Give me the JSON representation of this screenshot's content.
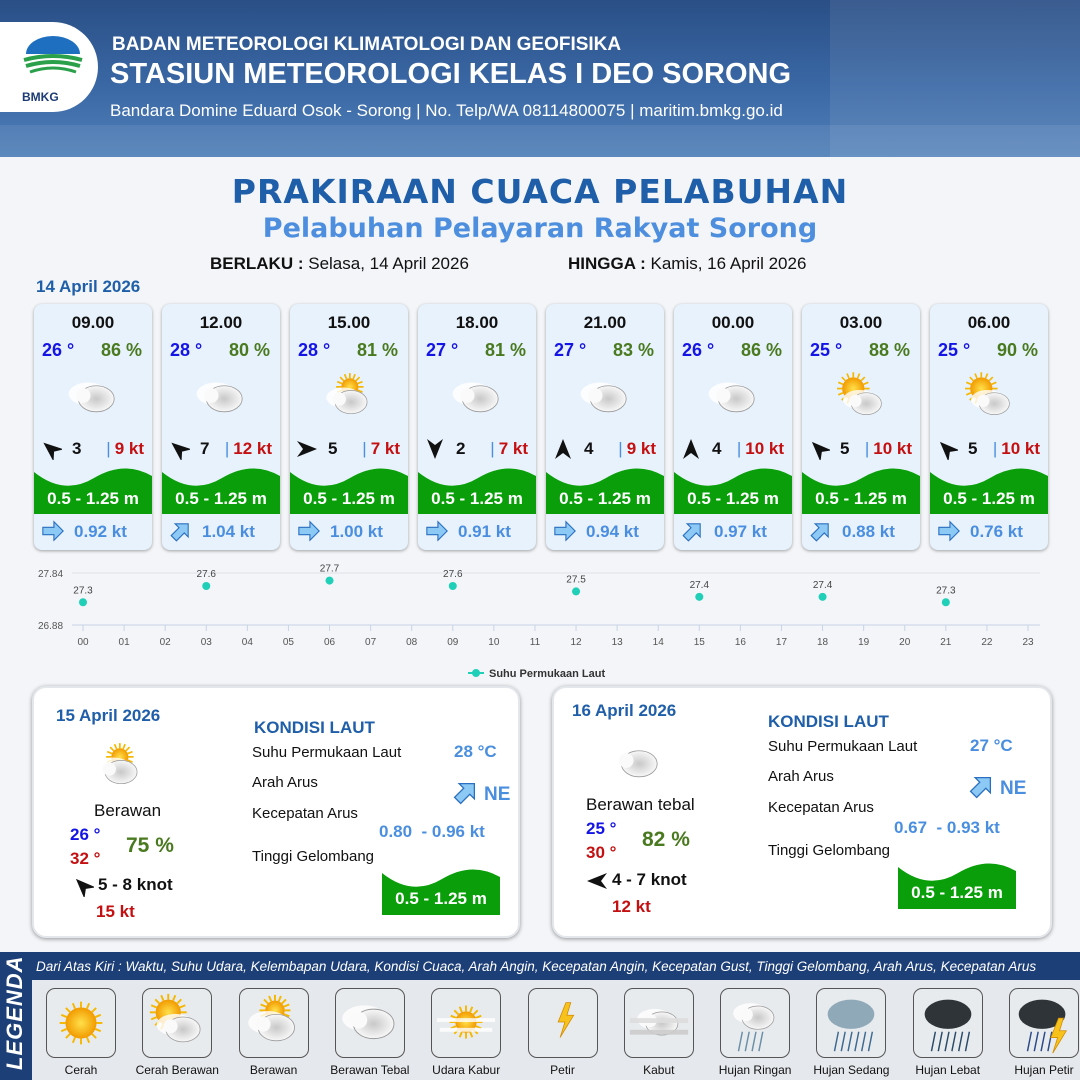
{
  "header": {
    "org": "BADAN METEOROLOGI KLIMATOLOGI DAN GEOFISIKA",
    "station": "STASIUN METEOROLOGI KELAS I DEO SORONG",
    "contact": "Bandara Domine Eduard Osok - Sorong | No. Telp/WA 08114800075 | maritim.bmkg.go.id",
    "logo_text": "BMKG"
  },
  "title": "PRAKIRAAN CUACA PELABUHAN",
  "subtitle": "Pelabuhan Pelayaran Rakyat Sorong",
  "validity": {
    "from_label": "BERLAKU :",
    "from": "Selasa, 14 April 2026",
    "to_label": "HINGGA :",
    "to": "Kamis, 16 April 2026"
  },
  "today": "14 April 2026",
  "forecasts": [
    {
      "time": "09.00",
      "temp": "26 °",
      "hum": "86 %",
      "weather": "berawan-tebal",
      "wind_dir_deg": -50,
      "wind": "3",
      "gust": "9 kt",
      "wave": "0.5 - 1.25 m",
      "current_dir_deg": 90,
      "current": "0.92 kt"
    },
    {
      "time": "12.00",
      "temp": "28 °",
      "hum": "80 %",
      "weather": "berawan-tebal",
      "wind_dir_deg": -50,
      "wind": "7",
      "gust": "12 kt",
      "wave": "0.5 - 1.25 m",
      "current_dir_deg": 45,
      "current": "1.04 kt"
    },
    {
      "time": "15.00",
      "temp": "28 °",
      "hum": "81 %",
      "weather": "berawan",
      "wind_dir_deg": 90,
      "wind": "5",
      "gust": "7 kt",
      "wave": "0.5 - 1.25 m",
      "current_dir_deg": 90,
      "current": "1.00 kt"
    },
    {
      "time": "18.00",
      "temp": "27 °",
      "hum": "81 %",
      "weather": "berawan-tebal",
      "wind_dir_deg": 180,
      "wind": "2",
      "gust": "7 kt",
      "wave": "0.5 - 1.25 m",
      "current_dir_deg": 90,
      "current": "0.91 kt"
    },
    {
      "time": "21.00",
      "temp": "27 °",
      "hum": "83 %",
      "weather": "berawan-tebal",
      "wind_dir_deg": 0,
      "wind": "4",
      "gust": "9 kt",
      "wave": "0.5 - 1.25 m",
      "current_dir_deg": 90,
      "current": "0.94 kt"
    },
    {
      "time": "00.00",
      "temp": "26 °",
      "hum": "86 %",
      "weather": "berawan-tebal",
      "wind_dir_deg": 0,
      "wind": "4",
      "gust": "10 kt",
      "wave": "0.5 - 1.25 m",
      "current_dir_deg": 45,
      "current": "0.97 kt"
    },
    {
      "time": "03.00",
      "temp": "25 °",
      "hum": "88 %",
      "weather": "cerah-berawan",
      "wind_dir_deg": -45,
      "wind": "5",
      "gust": "10 kt",
      "wave": "0.5 - 1.25 m",
      "current_dir_deg": 45,
      "current": "0.88 kt"
    },
    {
      "time": "06.00",
      "temp": "25 °",
      "hum": "90 %",
      "weather": "cerah-berawan",
      "wind_dir_deg": -45,
      "wind": "5",
      "gust": "10 kt",
      "wave": "0.5 - 1.25 m",
      "current_dir_deg": 90,
      "current": "0.76 kt"
    }
  ],
  "chart_data": {
    "type": "scatter",
    "legend": "Suhu Permukaan Laut",
    "legend_position": "bottom",
    "color": "#1fcfb8",
    "x_ticks": [
      "00",
      "01",
      "02",
      "03",
      "04",
      "05",
      "06",
      "07",
      "08",
      "09",
      "10",
      "11",
      "12",
      "13",
      "14",
      "15",
      "16",
      "17",
      "18",
      "19",
      "20",
      "21",
      "22",
      "23"
    ],
    "y_ticks": [
      "27.84",
      "26.88"
    ],
    "ylim": [
      26.88,
      27.84
    ],
    "grid": true,
    "points": [
      {
        "x": "00",
        "y": 27.3
      },
      {
        "x": "03",
        "y": 27.6
      },
      {
        "x": "06",
        "y": 27.7
      },
      {
        "x": "09",
        "y": 27.6
      },
      {
        "x": "12",
        "y": 27.5
      },
      {
        "x": "15",
        "y": 27.4
      },
      {
        "x": "18",
        "y": 27.4
      },
      {
        "x": "21",
        "y": 27.3
      }
    ]
  },
  "days": [
    {
      "date": "15 April 2026",
      "weather": "berawan",
      "condition": "Berawan",
      "tmin": "26 °",
      "tmax": "32 °",
      "hum": "75 %",
      "wind_dir_deg": -45,
      "wind": "5 - 8 knot",
      "gust": "15 kt",
      "sea_title": "KONDISI LAUT",
      "sst_label": "Suhu Permukaan Laut",
      "sst": "28 °C",
      "cur_dir_label": "Arah Arus",
      "cur_dir": "NE",
      "cur_speed_label": "Kecepatan Arus",
      "cur_speed": "0.80  - 0.96 kt",
      "wave_label": "Tinggi Gelombang",
      "wave": "0.5 - 1.25 m"
    },
    {
      "date": "16 April 2026",
      "weather": "berawan-tebal",
      "condition": "Berawan tebal",
      "tmin": "25 °",
      "tmax": "30 °",
      "hum": "82 %",
      "wind_dir_deg": -90,
      "wind": "4 - 7 knot",
      "gust": "12 kt",
      "sea_title": "KONDISI LAUT",
      "sst_label": "Suhu Permukaan Laut",
      "sst": "27 °C",
      "cur_dir_label": "Arah Arus",
      "cur_dir": "NE",
      "cur_speed_label": "Kecepatan Arus",
      "cur_speed": "0.67  - 0.93 kt",
      "wave_label": "Tinggi Gelombang",
      "wave": "0.5 - 1.25 m"
    }
  ],
  "legend": {
    "title": "LEGENDA",
    "description": "Dari Atas Kiri : Waktu, Suhu Udara, Kelembapan Udara, Kondisi Cuaca, Arah Angin, Kecepatan Angin, Kecepatan Gust, Tinggi Gelombang, Arah Arus, Kecepatan Arus",
    "items": [
      {
        "label": "Cerah",
        "icon": "cerah"
      },
      {
        "label": "Cerah Berawan",
        "icon": "cerah-berawan"
      },
      {
        "label": "Berawan",
        "icon": "berawan"
      },
      {
        "label": "Berawan Tebal",
        "icon": "berawan-tebal"
      },
      {
        "label": "Udara Kabur",
        "icon": "udara-kabur"
      },
      {
        "label": "Petir",
        "icon": "petir"
      },
      {
        "label": "Kabut",
        "icon": "kabut"
      },
      {
        "label": "Hujan Ringan",
        "icon": "hujan-ringan"
      },
      {
        "label": "Hujan Sedang",
        "icon": "hujan-sedang"
      },
      {
        "label": "Hujan Lebat",
        "icon": "hujan-lebat"
      },
      {
        "label": "Hujan Petir",
        "icon": "hujan-petir"
      }
    ]
  },
  "colors": {
    "title": "#1f5ea8",
    "temp": "#1414e6",
    "humidity": "#4a7a20",
    "gust": "#c41010",
    "wave": "#0a9e0a",
    "current": "#4a8ee0"
  }
}
